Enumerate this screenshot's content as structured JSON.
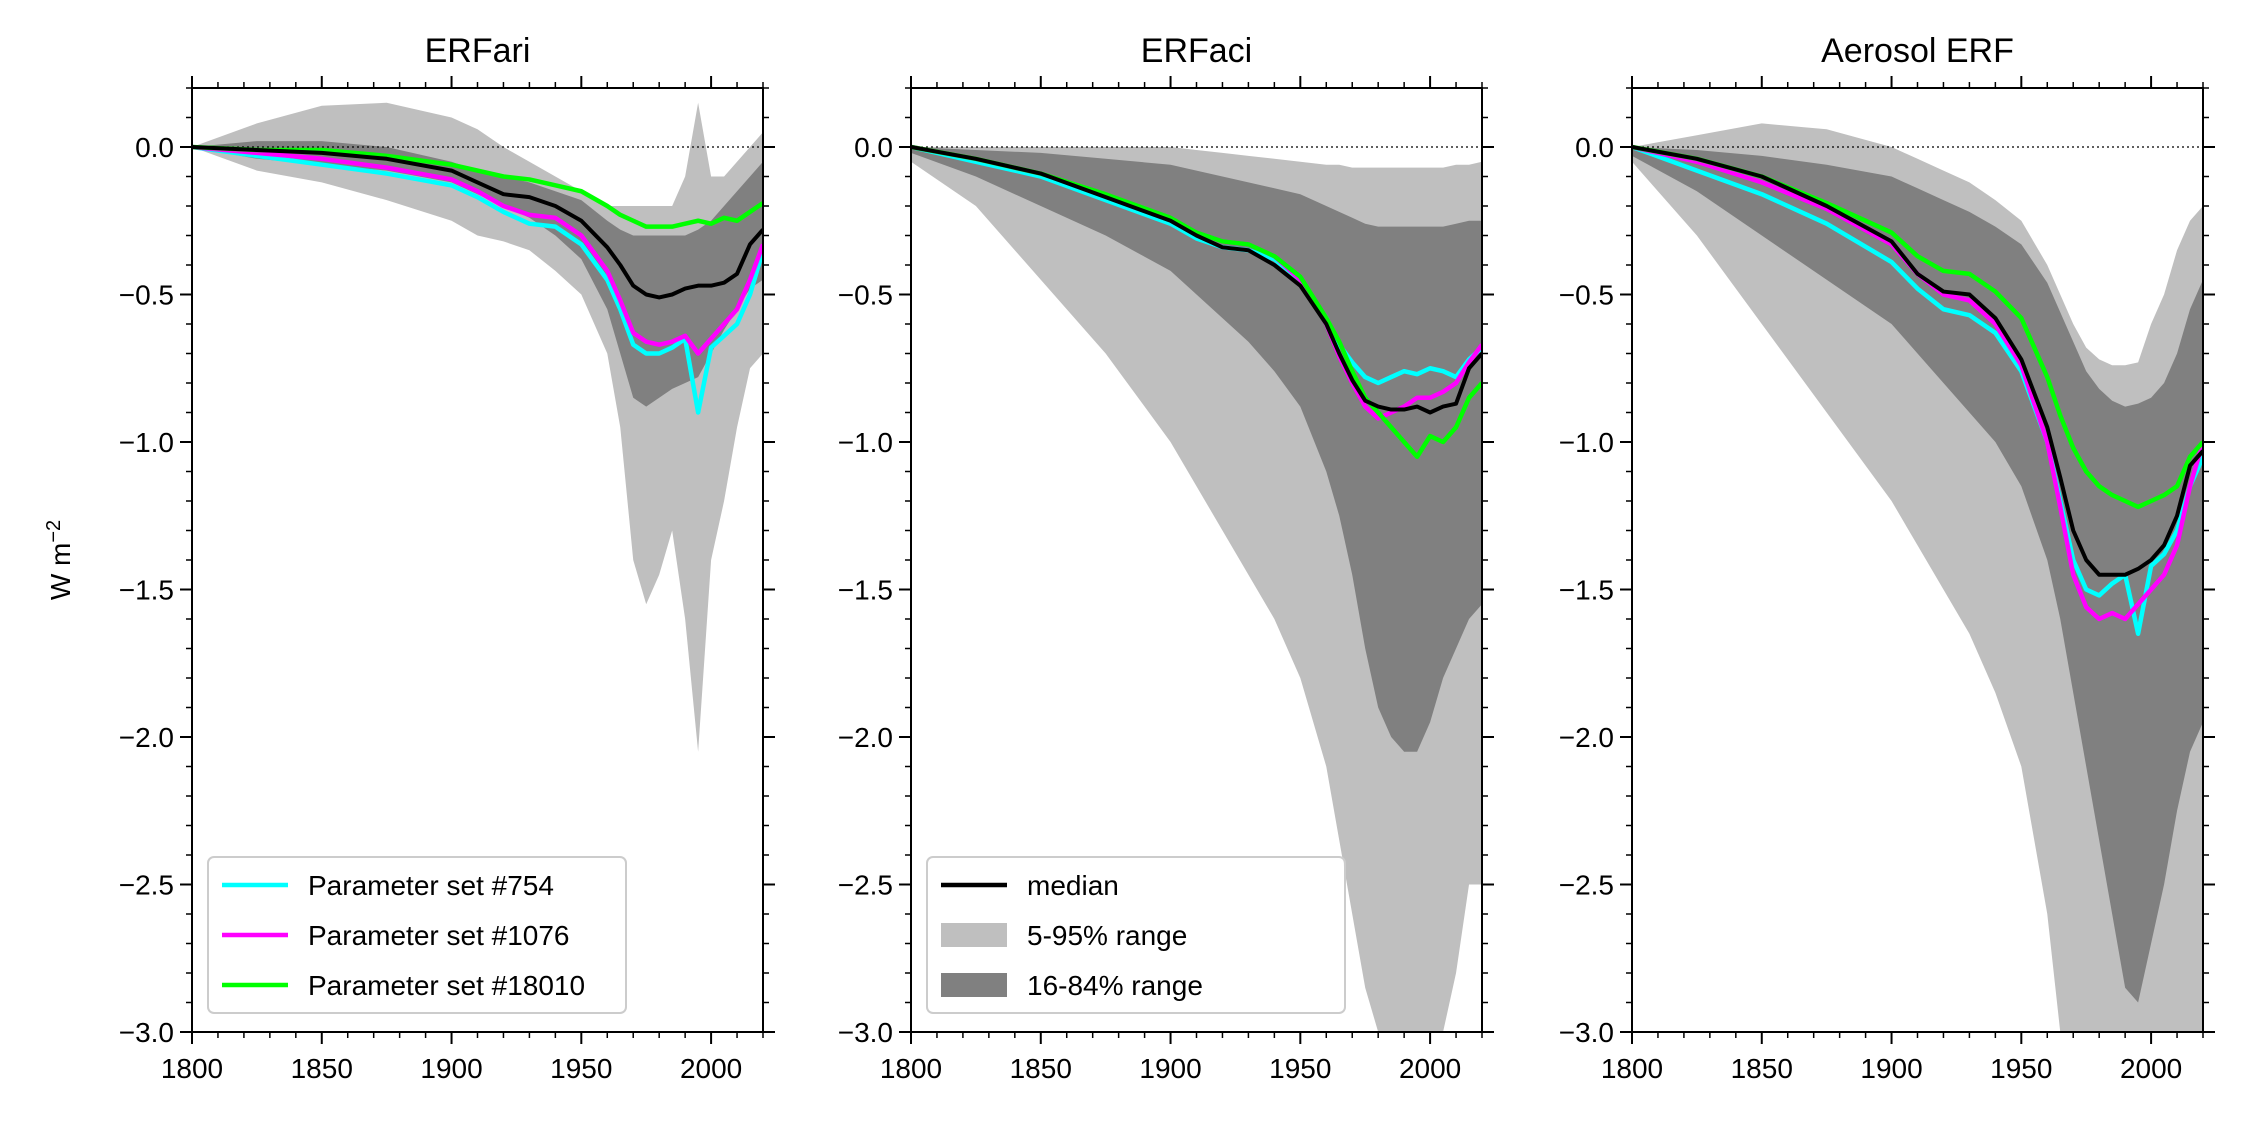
{
  "chart_data": {
    "type": "line",
    "ylabel": "W m",
    "ylabel_sup": "−2",
    "xlim": [
      1800,
      2020
    ],
    "ylim": [
      -3.0,
      0.2
    ],
    "xticks": [
      1800,
      1850,
      1900,
      1950,
      2000
    ],
    "xtick_labels": [
      "1800",
      "1850",
      "1900",
      "1950",
      "2000"
    ],
    "yticks": [
      0.0,
      -0.5,
      -1.0,
      -1.5,
      -2.0,
      -2.5,
      -3.0
    ],
    "ytick_labels": [
      "0.0",
      "−0.5",
      "−1.0",
      "−1.5",
      "−2.0",
      "−2.5",
      "−3.0"
    ],
    "grid": false,
    "zero_line": true,
    "colors": {
      "median": "#000000",
      "band_5_95": "#bfbfbf",
      "band_16_84": "#808080",
      "p754": "#00ffff",
      "p1076": "#ff00ff",
      "p18010": "#00ff00"
    },
    "panels": [
      {
        "title": "ERFari",
        "legend": {
          "placement": "lower-left",
          "entries": [
            {
              "label": "Parameter set #754",
              "color": "#00ffff",
              "kind": "line"
            },
            {
              "label": "Parameter set #1076",
              "color": "#ff00ff",
              "kind": "line"
            },
            {
              "label": "Parameter set #18010",
              "color": "#00ff00",
              "kind": "line"
            }
          ]
        },
        "x": [
          1800,
          1825,
          1850,
          1875,
          1900,
          1910,
          1920,
          1930,
          1940,
          1950,
          1960,
          1965,
          1970,
          1975,
          1980,
          1985,
          1990,
          1995,
          2000,
          2005,
          2010,
          2015,
          2020
        ],
        "band_5_95": {
          "upper": [
            0.0,
            0.08,
            0.14,
            0.15,
            0.1,
            0.06,
            0.0,
            -0.05,
            -0.1,
            -0.15,
            -0.2,
            -0.2,
            -0.2,
            -0.2,
            -0.2,
            -0.2,
            -0.1,
            0.15,
            -0.1,
            -0.1,
            -0.05,
            0.0,
            0.05
          ],
          "lower": [
            0.0,
            -0.08,
            -0.12,
            -0.18,
            -0.25,
            -0.3,
            -0.32,
            -0.35,
            -0.42,
            -0.5,
            -0.7,
            -0.95,
            -1.4,
            -1.55,
            -1.45,
            -1.3,
            -1.6,
            -2.05,
            -1.4,
            -1.2,
            -0.95,
            -0.75,
            -0.7
          ]
        },
        "band_16_84": {
          "upper": [
            0.0,
            0.02,
            0.02,
            0.0,
            -0.05,
            -0.08,
            -0.1,
            -0.12,
            -0.15,
            -0.18,
            -0.25,
            -0.28,
            -0.3,
            -0.3,
            -0.3,
            -0.3,
            -0.3,
            -0.28,
            -0.25,
            -0.2,
            -0.15,
            -0.1,
            -0.05
          ],
          "lower": [
            0.0,
            -0.04,
            -0.06,
            -0.08,
            -0.12,
            -0.16,
            -0.2,
            -0.24,
            -0.3,
            -0.38,
            -0.55,
            -0.7,
            -0.85,
            -0.88,
            -0.85,
            -0.82,
            -0.8,
            -0.78,
            -0.7,
            -0.62,
            -0.55,
            -0.48,
            -0.45
          ]
        },
        "series": [
          {
            "key": "median",
            "values": [
              0.0,
              -0.01,
              -0.02,
              -0.04,
              -0.08,
              -0.12,
              -0.16,
              -0.17,
              -0.2,
              -0.25,
              -0.34,
              -0.4,
              -0.47,
              -0.5,
              -0.51,
              -0.5,
              -0.48,
              -0.47,
              -0.47,
              -0.46,
              -0.43,
              -0.33,
              -0.28
            ]
          },
          {
            "key": "p754",
            "values": [
              0.0,
              -0.03,
              -0.06,
              -0.09,
              -0.13,
              -0.17,
              -0.22,
              -0.26,
              -0.27,
              -0.33,
              -0.45,
              -0.55,
              -0.67,
              -0.7,
              -0.7,
              -0.68,
              -0.65,
              -0.9,
              -0.68,
              -0.64,
              -0.6,
              -0.5,
              -0.35
            ]
          },
          {
            "key": "p1076",
            "values": [
              0.0,
              -0.02,
              -0.04,
              -0.07,
              -0.11,
              -0.15,
              -0.2,
              -0.23,
              -0.24,
              -0.3,
              -0.42,
              -0.52,
              -0.63,
              -0.66,
              -0.67,
              -0.66,
              -0.64,
              -0.7,
              -0.65,
              -0.6,
              -0.55,
              -0.45,
              -0.33
            ]
          },
          {
            "key": "p18010",
            "values": [
              0.0,
              -0.01,
              -0.01,
              -0.03,
              -0.06,
              -0.08,
              -0.1,
              -0.11,
              -0.13,
              -0.15,
              -0.2,
              -0.23,
              -0.25,
              -0.27,
              -0.27,
              -0.27,
              -0.26,
              -0.25,
              -0.26,
              -0.24,
              -0.25,
              -0.22,
              -0.19
            ]
          }
        ]
      },
      {
        "title": "ERFaci",
        "legend": {
          "placement": "lower-left",
          "entries": [
            {
              "label": "median",
              "color": "#000000",
              "kind": "line"
            },
            {
              "label": "5-95% range",
              "color": "#bfbfbf",
              "kind": "patch"
            },
            {
              "label": "16-84% range",
              "color": "#808080",
              "kind": "patch"
            }
          ]
        },
        "x": [
          1800,
          1825,
          1850,
          1875,
          1900,
          1910,
          1920,
          1930,
          1940,
          1950,
          1960,
          1965,
          1970,
          1975,
          1980,
          1985,
          1990,
          1995,
          2000,
          2005,
          2010,
          2015,
          2020
        ],
        "band_5_95": {
          "upper": [
            0.0,
            0.0,
            0.0,
            0.0,
            0.0,
            -0.01,
            -0.02,
            -0.03,
            -0.04,
            -0.05,
            -0.06,
            -0.06,
            -0.07,
            -0.07,
            -0.07,
            -0.07,
            -0.07,
            -0.07,
            -0.07,
            -0.07,
            -0.06,
            -0.06,
            -0.05
          ],
          "lower": [
            -0.05,
            -0.2,
            -0.45,
            -0.7,
            -1.0,
            -1.15,
            -1.3,
            -1.45,
            -1.6,
            -1.8,
            -2.1,
            -2.35,
            -2.6,
            -2.85,
            -3.0,
            -3.0,
            -3.0,
            -3.0,
            -3.0,
            -3.0,
            -2.8,
            -2.5,
            -2.5
          ]
        },
        "band_16_84": {
          "upper": [
            0.0,
            -0.01,
            -0.02,
            -0.04,
            -0.06,
            -0.08,
            -0.1,
            -0.12,
            -0.14,
            -0.16,
            -0.2,
            -0.22,
            -0.24,
            -0.26,
            -0.27,
            -0.27,
            -0.27,
            -0.27,
            -0.27,
            -0.27,
            -0.26,
            -0.25,
            -0.25
          ],
          "lower": [
            -0.02,
            -0.1,
            -0.2,
            -0.3,
            -0.42,
            -0.5,
            -0.58,
            -0.66,
            -0.76,
            -0.88,
            -1.1,
            -1.25,
            -1.45,
            -1.7,
            -1.9,
            -2.0,
            -2.05,
            -2.05,
            -1.95,
            -1.8,
            -1.7,
            -1.6,
            -1.55
          ]
        },
        "series": [
          {
            "key": "median",
            "values": [
              0.0,
              -0.04,
              -0.09,
              -0.17,
              -0.25,
              -0.3,
              -0.34,
              -0.35,
              -0.4,
              -0.47,
              -0.6,
              -0.7,
              -0.79,
              -0.86,
              -0.88,
              -0.89,
              -0.89,
              -0.88,
              -0.9,
              -0.88,
              -0.87,
              -0.75,
              -0.7
            ]
          },
          {
            "key": "p754",
            "values": [
              0.0,
              -0.05,
              -0.1,
              -0.18,
              -0.26,
              -0.31,
              -0.34,
              -0.35,
              -0.38,
              -0.45,
              -0.58,
              -0.67,
              -0.73,
              -0.78,
              -0.8,
              -0.78,
              -0.76,
              -0.77,
              -0.75,
              -0.76,
              -0.78,
              -0.72,
              -0.68
            ]
          },
          {
            "key": "p1076",
            "values": [
              0.0,
              -0.04,
              -0.09,
              -0.16,
              -0.24,
              -0.29,
              -0.32,
              -0.33,
              -0.37,
              -0.45,
              -0.6,
              -0.71,
              -0.8,
              -0.88,
              -0.92,
              -0.9,
              -0.88,
              -0.85,
              -0.85,
              -0.83,
              -0.8,
              -0.73,
              -0.67
            ]
          },
          {
            "key": "p18010",
            "values": [
              0.0,
              -0.04,
              -0.09,
              -0.16,
              -0.24,
              -0.29,
              -0.32,
              -0.33,
              -0.37,
              -0.44,
              -0.58,
              -0.66,
              -0.76,
              -0.85,
              -0.9,
              -0.95,
              -1.0,
              -1.05,
              -0.98,
              -1.0,
              -0.95,
              -0.85,
              -0.8
            ]
          }
        ]
      },
      {
        "title": "Aerosol ERF",
        "legend": null,
        "x": [
          1800,
          1825,
          1850,
          1875,
          1900,
          1910,
          1920,
          1930,
          1940,
          1950,
          1960,
          1965,
          1970,
          1975,
          1980,
          1985,
          1990,
          1995,
          2000,
          2005,
          2010,
          2015,
          2020
        ],
        "band_5_95": {
          "upper": [
            0.0,
            0.04,
            0.08,
            0.06,
            0.0,
            -0.04,
            -0.08,
            -0.12,
            -0.18,
            -0.25,
            -0.4,
            -0.5,
            -0.6,
            -0.68,
            -0.72,
            -0.74,
            -0.74,
            -0.73,
            -0.6,
            -0.5,
            -0.35,
            -0.25,
            -0.2
          ]
        },
        "band_16_84": {
          "upper": [
            0.0,
            -0.01,
            -0.03,
            -0.06,
            -0.1,
            -0.14,
            -0.18,
            -0.22,
            -0.27,
            -0.33,
            -0.46,
            -0.56,
            -0.66,
            -0.76,
            -0.82,
            -0.86,
            -0.88,
            -0.87,
            -0.85,
            -0.8,
            -0.7,
            -0.55,
            -0.45
          ]
        },
        "band_16_84_lower": [
          -0.03,
          -0.15,
          -0.3,
          -0.45,
          -0.6,
          -0.7,
          -0.8,
          -0.9,
          -1.0,
          -1.15,
          -1.4,
          -1.6,
          -1.85,
          -2.1,
          -2.35,
          -2.6,
          -2.85,
          -2.9,
          -2.7,
          -2.5,
          -2.25,
          -2.05,
          -1.95
        ],
        "band_5_95_lower": [
          -0.05,
          -0.3,
          -0.6,
          -0.9,
          -1.2,
          -1.35,
          -1.5,
          -1.65,
          -1.85,
          -2.1,
          -2.6,
          -3.0,
          -3.0,
          -3.0,
          -3.0,
          -3.0,
          -3.0,
          -3.0,
          -3.0,
          -3.0,
          -3.0,
          -3.0,
          -3.0
        ],
        "series": [
          {
            "key": "median",
            "values": [
              0.0,
              -0.04,
              -0.1,
              -0.2,
              -0.32,
              -0.43,
              -0.49,
              -0.5,
              -0.58,
              -0.72,
              -0.95,
              -1.12,
              -1.3,
              -1.4,
              -1.45,
              -1.45,
              -1.45,
              -1.43,
              -1.4,
              -1.35,
              -1.25,
              -1.08,
              -1.03
            ]
          },
          {
            "key": "p754",
            "values": [
              0.0,
              -0.08,
              -0.16,
              -0.26,
              -0.39,
              -0.48,
              -0.55,
              -0.57,
              -0.63,
              -0.76,
              -1.0,
              -1.2,
              -1.4,
              -1.5,
              -1.52,
              -1.48,
              -1.45,
              -1.65,
              -1.42,
              -1.38,
              -1.3,
              -1.15,
              -1.05
            ]
          },
          {
            "key": "p1076",
            "values": [
              0.0,
              -0.05,
              -0.12,
              -0.21,
              -0.33,
              -0.43,
              -0.5,
              -0.52,
              -0.6,
              -0.74,
              -1.0,
              -1.22,
              -1.45,
              -1.56,
              -1.6,
              -1.58,
              -1.6,
              -1.55,
              -1.5,
              -1.45,
              -1.35,
              -1.15,
              -1.0
            ]
          },
          {
            "key": "p18010",
            "values": [
              0.0,
              -0.04,
              -0.1,
              -0.19,
              -0.29,
              -0.37,
              -0.42,
              -0.43,
              -0.49,
              -0.58,
              -0.78,
              -0.91,
              -1.02,
              -1.1,
              -1.15,
              -1.18,
              -1.2,
              -1.22,
              -1.2,
              -1.18,
              -1.15,
              -1.05,
              -1.0
            ]
          }
        ]
      }
    ]
  }
}
